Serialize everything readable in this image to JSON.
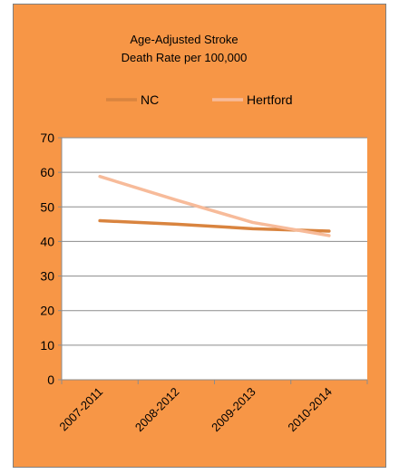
{
  "chart_data": {
    "type": "line",
    "title_lines": [
      "Age-Adjusted Stroke",
      "Death Rate per 100,000"
    ],
    "categories": [
      "2007-2011",
      "2008-2012",
      "2009-2013",
      "2010-2014"
    ],
    "series": [
      {
        "name": "NC",
        "color": "#D9843F",
        "values": [
          46.0,
          45.0,
          43.7,
          43.0
        ]
      },
      {
        "name": "Hertford",
        "color": "#F7BB9A",
        "values": [
          58.8,
          52.0,
          45.5,
          41.7
        ]
      }
    ],
    "ylim": [
      0,
      70
    ],
    "yticks": [
      0,
      10,
      20,
      30,
      40,
      50,
      60,
      70
    ],
    "grid": true,
    "legend_position": "top"
  },
  "colors": {
    "background": "#F79646",
    "plot_area": "#FFFFFF",
    "gridline": "#8C8C8C"
  }
}
